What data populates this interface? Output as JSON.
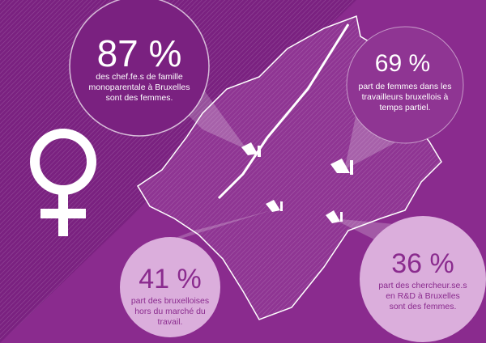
{
  "stats": [
    {
      "value": "87 %",
      "lines": [
        "des chef.fe.s de famille",
        "monoparentale à Bruxelles",
        "sont des femmes."
      ]
    },
    {
      "value": "69 %",
      "lines": [
        "part de femmes dans les",
        "travailleurs bruxellois à",
        "temps partiel."
      ]
    },
    {
      "value": "41 %",
      "lines": [
        "part des bruxelloises",
        "hors du marché du",
        "travail."
      ]
    },
    {
      "value": "36 %",
      "lines": [
        "part des chercheur.se.s",
        "en R&D à Bruxelles",
        "sont des femmes."
      ]
    }
  ]
}
